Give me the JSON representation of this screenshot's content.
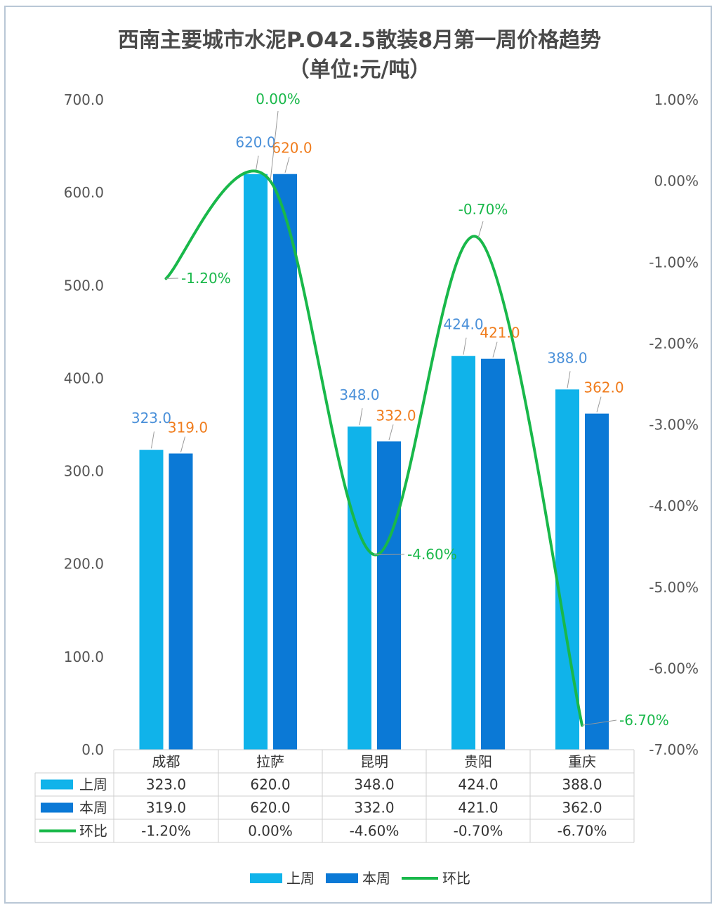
{
  "chart_data": {
    "type": "bar",
    "title": "西南主要城市水泥P.O42.5散装8月第一周价格趋势",
    "subtitle": "（单位:元/吨）",
    "categories": [
      "成都",
      "拉萨",
      "昆明",
      "贵阳",
      "重庆"
    ],
    "series": [
      {
        "name": "上周",
        "type": "bar",
        "axis": "left",
        "color": "#10b3ea",
        "label_color": "#4a90d9",
        "values": [
          323.0,
          620.0,
          348.0,
          424.0,
          388.0
        ]
      },
      {
        "name": "本周",
        "type": "bar",
        "axis": "left",
        "color": "#0b79d6",
        "label_color": "#f07c1c",
        "values": [
          319.0,
          620.0,
          332.0,
          421.0,
          362.0
        ]
      },
      {
        "name": "环比",
        "type": "line",
        "axis": "right",
        "color": "#19b84a",
        "values": [
          -1.2,
          0.0,
          -4.6,
          -0.7,
          -6.7
        ]
      }
    ],
    "bar_labels": {
      "上周": [
        "323.0",
        "620.0",
        "348.0",
        "424.0",
        "388.0"
      ],
      "本周": [
        "319.0",
        "620.0",
        "332.0",
        "421.0",
        "362.0"
      ]
    },
    "line_labels": [
      "-1.20%",
      "0.00%",
      "-4.60%",
      "-0.70%",
      "-6.70%"
    ],
    "ylim_left": [
      0,
      700
    ],
    "yticks_left": [
      "0.0",
      "100.0",
      "200.0",
      "300.0",
      "400.0",
      "500.0",
      "600.0",
      "700.0"
    ],
    "ylim_right": [
      -7,
      1
    ],
    "yticks_right": [
      "-7.00%",
      "-6.00%",
      "-5.00%",
      "-4.00%",
      "-3.00%",
      "-2.00%",
      "-1.00%",
      "0.00%",
      "1.00%"
    ],
    "data_table": {
      "rows": [
        {
          "name": "上周",
          "cells": [
            "323.0",
            "620.0",
            "348.0",
            "424.0",
            "388.0"
          ]
        },
        {
          "name": "本周",
          "cells": [
            "319.0",
            "620.0",
            "332.0",
            "421.0",
            "362.0"
          ]
        },
        {
          "name": "环比",
          "cells": [
            "-1.20%",
            "0.00%",
            "-4.60%",
            "-0.70%",
            "-6.70%"
          ]
        }
      ]
    },
    "legend": [
      "上周",
      "本周",
      "环比"
    ],
    "legend_position": "bottom",
    "grid": false
  }
}
